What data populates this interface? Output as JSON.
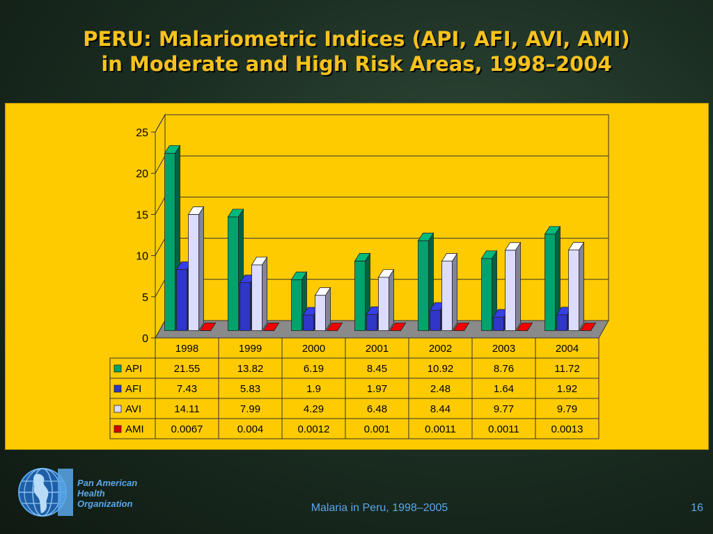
{
  "slide": {
    "title_line1": "PERU: Malariometric Indices (API, AFI, AVI, AMI)",
    "title_line2": "in Moderate and High Risk Areas, 1998–2004",
    "footer": "Malaria in Peru, 1998–2005",
    "page_number": "16",
    "org_line1": "Pan American",
    "org_line2": "Health",
    "org_line3": "Organization",
    "colors": {
      "background": "#1c2f23",
      "title": "#f6c21d",
      "panel": "#fecb01",
      "footer_text": "#5aa8ea"
    }
  },
  "chart_data": {
    "type": "bar",
    "categories": [
      "1998",
      "1999",
      "2000",
      "2001",
      "2002",
      "2003",
      "2004"
    ],
    "series": [
      {
        "name": "API",
        "color": "#00a36c",
        "values": [
          21.55,
          13.82,
          6.19,
          8.45,
          10.92,
          8.76,
          11.72
        ],
        "labels": [
          "21.55",
          "13.82",
          "6.19",
          "8.45",
          "10.92",
          "8.76",
          "11.72"
        ]
      },
      {
        "name": "AFI",
        "color": "#2f36c8",
        "values": [
          7.43,
          5.83,
          1.9,
          1.97,
          2.48,
          1.64,
          1.92
        ],
        "labels": [
          "7.43",
          "5.83",
          "1.9",
          "1.97",
          "2.48",
          "1.64",
          "1.92"
        ]
      },
      {
        "name": "AVI",
        "color": "#dcdcff",
        "values": [
          14.11,
          7.99,
          4.29,
          6.48,
          8.44,
          9.77,
          9.79
        ],
        "labels": [
          "14.11",
          "7.99",
          "4.29",
          "6.48",
          "8.44",
          "9.77",
          "9.79"
        ]
      },
      {
        "name": "AMI",
        "color": "#d40000",
        "values": [
          0.0067,
          0.004,
          0.0012,
          0.001,
          0.0011,
          0.0011,
          0.0013
        ],
        "labels": [
          "0.0067",
          "0.004",
          "0.0012",
          "0.001",
          "0.0011",
          "0.0011",
          "0.0013"
        ]
      }
    ],
    "ylim": [
      0,
      25
    ],
    "yticks": [
      "0",
      "5",
      "10",
      "15",
      "20",
      "25"
    ],
    "grid": true,
    "style": "3d-clustered-bar-with-data-table",
    "legend": "data-table-left"
  }
}
